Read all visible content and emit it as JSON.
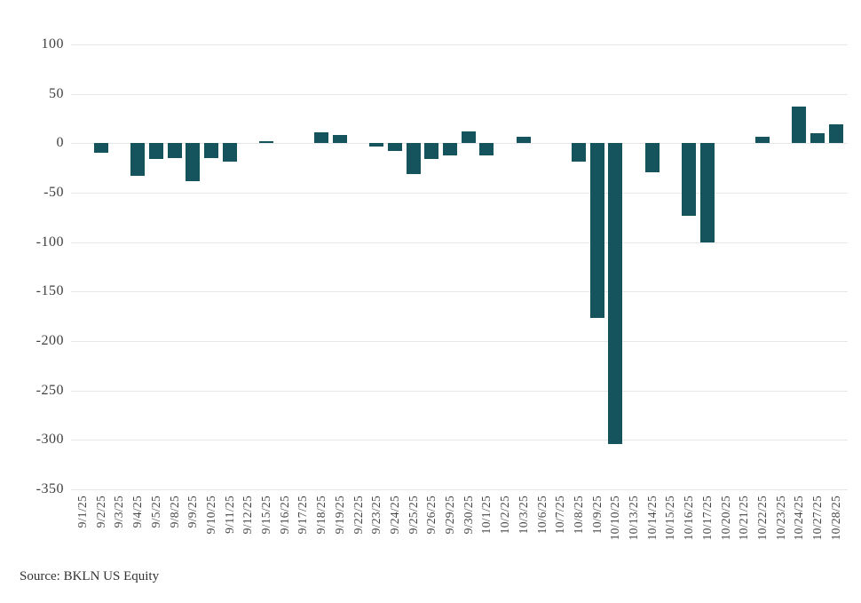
{
  "chart_data": {
    "type": "bar",
    "title": "",
    "xlabel": "",
    "ylabel": "",
    "categories": [
      "9/1/25",
      "9/2/25",
      "9/3/25",
      "9/4/25",
      "9/5/25",
      "9/8/25",
      "9/9/25",
      "9/10/25",
      "9/11/25",
      "9/12/25",
      "9/15/25",
      "9/16/25",
      "9/17/25",
      "9/18/25",
      "9/19/25",
      "9/22/25",
      "9/23/25",
      "9/24/25",
      "9/25/25",
      "9/26/25",
      "9/29/25",
      "9/30/25",
      "10/1/25",
      "10/2/25",
      "10/3/25",
      "10/6/25",
      "10/7/25",
      "10/8/25",
      "10/9/25",
      "10/10/25",
      "10/13/25",
      "10/14/25",
      "10/15/25",
      "10/16/25",
      "10/17/25",
      "10/20/25",
      "10/21/25",
      "10/22/25",
      "10/23/25",
      "10/24/25",
      "10/27/25",
      "10/28/25"
    ],
    "values": [
      0,
      -10,
      0,
      -33,
      -16,
      -15,
      -38,
      -15,
      -19,
      0,
      2,
      0,
      0,
      11,
      8,
      0,
      -3,
      -8,
      -31,
      -16,
      -12,
      12,
      -12,
      0,
      7,
      0,
      0,
      -19,
      -177,
      -304,
      0,
      -29,
      0,
      -73,
      -100,
      0,
      0,
      7,
      0,
      37,
      10,
      19
    ],
    "ylim": [
      -350,
      100
    ],
    "y_ticks": [
      100,
      50,
      0,
      -50,
      -100,
      -150,
      -200,
      -250,
      -300,
      -350
    ],
    "grid": true,
    "legend": "none",
    "bar_color": "#15545c"
  },
  "colors": {
    "bar": "#15545c",
    "gridline": "#e7e7e7",
    "axis_text": "#3f3f3f",
    "background": "#ffffff"
  },
  "source": {
    "label": "Source: BKLN US Equity"
  }
}
